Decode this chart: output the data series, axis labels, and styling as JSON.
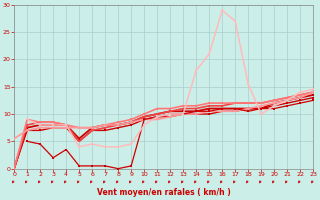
{
  "background_color": "#cceee8",
  "grid_color": "#aacccc",
  "xlabel": "Vent moyen/en rafales ( km/h )",
  "xlabel_color": "#cc0000",
  "ylabel_color": "#cc0000",
  "tick_color": "#cc0000",
  "yticks": [
    0,
    5,
    10,
    15,
    20,
    25,
    30
  ],
  "xticks": [
    0,
    1,
    2,
    3,
    4,
    5,
    6,
    7,
    8,
    9,
    10,
    11,
    12,
    13,
    14,
    15,
    16,
    17,
    18,
    19,
    20,
    21,
    22,
    23
  ],
  "xlim": [
    0,
    23
  ],
  "ylim": [
    0,
    30
  ],
  "lines": [
    {
      "x": [
        0,
        1,
        2,
        3,
        4,
        5,
        6,
        7,
        8,
        9,
        10,
        11,
        12,
        13,
        14,
        15,
        16,
        17,
        18,
        19,
        20,
        21,
        22,
        23
      ],
      "y": [
        0,
        7,
        7,
        7.5,
        7.5,
        5,
        7,
        7,
        7.5,
        8,
        9,
        9.5,
        9.5,
        10,
        10,
        10,
        10.5,
        10.5,
        11,
        11,
        11.5,
        12,
        12.5,
        13
      ],
      "color": "#cc0000",
      "lw": 1.0,
      "marker": "s",
      "ms": 1.8
    },
    {
      "x": [
        0,
        1,
        2,
        3,
        4,
        5,
        6,
        7,
        8,
        9,
        10,
        11,
        12,
        13,
        14,
        15,
        16,
        17,
        18,
        19,
        20,
        21,
        22,
        23
      ],
      "y": [
        0,
        7.5,
        8,
        8,
        8,
        5.5,
        7.5,
        8,
        8,
        8.5,
        9.5,
        10,
        10.5,
        10.5,
        10.5,
        11,
        11,
        11,
        11,
        11,
        12,
        12.5,
        13,
        13.5
      ],
      "color": "#cc0000",
      "lw": 1.3,
      "marker": "s",
      "ms": 2.0
    },
    {
      "x": [
        0,
        1,
        2,
        3,
        4,
        5,
        6,
        7,
        8,
        9,
        10,
        11,
        12,
        13,
        14,
        15,
        16,
        17,
        18,
        19,
        20,
        21,
        22,
        23
      ],
      "y": [
        0,
        8,
        8.5,
        8.5,
        8,
        5,
        7,
        7.5,
        8,
        8.5,
        9.5,
        10,
        10.5,
        11,
        11,
        11.5,
        11.5,
        12,
        12,
        12,
        12.5,
        13,
        13.5,
        14
      ],
      "color": "#ee4444",
      "lw": 1.2,
      "marker": "s",
      "ms": 2.0
    },
    {
      "x": [
        0,
        1,
        2,
        3,
        4,
        5,
        6,
        7,
        8,
        9,
        10,
        11,
        12,
        13,
        14,
        15,
        16,
        17,
        18,
        19,
        20,
        21,
        22,
        23
      ],
      "y": [
        0,
        9,
        8.5,
        8.5,
        8,
        7.5,
        7.5,
        8,
        8.5,
        9,
        10,
        11,
        11,
        11.5,
        11.5,
        12,
        12,
        12,
        12,
        12,
        12.5,
        13,
        13.5,
        14
      ],
      "color": "#ff7777",
      "lw": 1.2,
      "marker": "s",
      "ms": 2.0
    },
    {
      "x": [
        0,
        1,
        2,
        3,
        4,
        5,
        6,
        7,
        8,
        9,
        10,
        11,
        12,
        13,
        14,
        15,
        16,
        17,
        18,
        19,
        20,
        21,
        22,
        23
      ],
      "y": [
        5.5,
        7,
        7.5,
        7.5,
        7.5,
        7.5,
        7.5,
        8,
        8,
        8.5,
        9,
        9,
        9.5,
        10,
        10,
        10.5,
        10.5,
        10.5,
        11,
        11.5,
        12,
        12.5,
        13,
        14
      ],
      "color": "#ff9999",
      "lw": 1.2,
      "marker": "s",
      "ms": 2.0
    },
    {
      "x": [
        1,
        2,
        3,
        4,
        5,
        6,
        7,
        8,
        9,
        10,
        11,
        12,
        13,
        14,
        15,
        16,
        17,
        18,
        19,
        20,
        21,
        22,
        23
      ],
      "y": [
        5,
        4.5,
        2,
        3.5,
        0.5,
        0.5,
        0.5,
        0,
        0.5,
        9,
        9.5,
        10,
        10,
        10.5,
        10.5,
        11,
        11,
        10.5,
        11,
        11,
        11.5,
        12,
        12.5
      ],
      "color": "#cc0000",
      "lw": 0.9,
      "marker": "s",
      "ms": 1.8
    },
    {
      "x": [
        1,
        2,
        3,
        4,
        5,
        6,
        7,
        8,
        9,
        10,
        11,
        12,
        13,
        14,
        15,
        16,
        17,
        18,
        19,
        20,
        21,
        22,
        23
      ],
      "y": [
        9,
        8,
        8,
        8,
        4,
        4.5,
        4,
        4,
        4.5,
        8,
        9.5,
        10,
        10,
        18,
        21,
        29,
        27,
        15.5,
        10,
        11.5,
        12.5,
        14,
        14.5
      ],
      "color": "#ffbbbb",
      "lw": 1.1,
      "marker": "s",
      "ms": 1.8
    }
  ]
}
